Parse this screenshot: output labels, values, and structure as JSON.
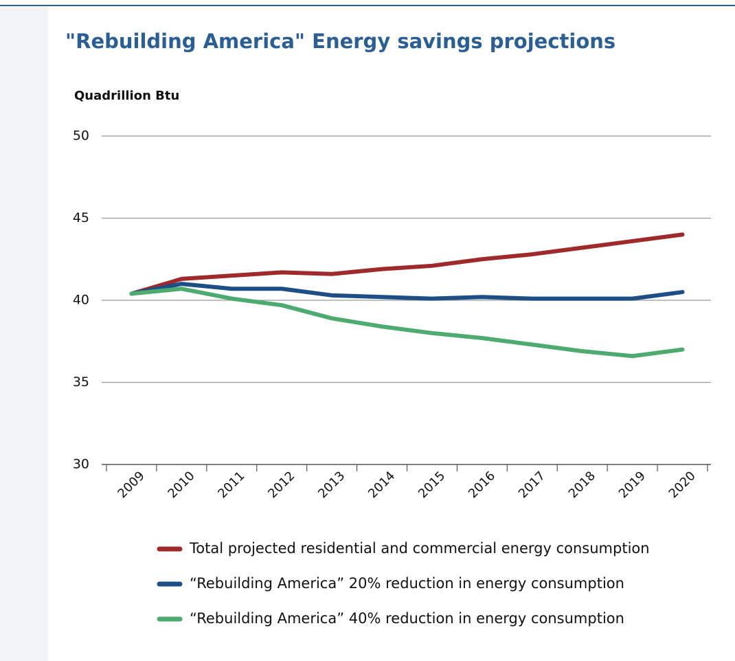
{
  "chart_data": {
    "type": "line",
    "title": "\"Rebuilding America\" Energy savings projections",
    "y_label": "Quadrillion Btu",
    "categories": [
      "2009",
      "2010",
      "2011",
      "2012",
      "2013",
      "2014",
      "2015",
      "2016",
      "2017",
      "2018",
      "2019",
      "2020"
    ],
    "series": [
      {
        "name": "Total projected residential and commercial energy consumption",
        "color": "#9e2a2b",
        "values": [
          40.4,
          41.3,
          41.5,
          41.7,
          41.6,
          41.9,
          42.1,
          42.5,
          42.8,
          43.2,
          43.6,
          44.0
        ]
      },
      {
        "name": "“Rebuilding America” 20% reduction in energy consumption",
        "color": "#1d4f86",
        "values": [
          40.4,
          41.0,
          40.7,
          40.7,
          40.3,
          40.2,
          40.1,
          40.2,
          40.1,
          40.1,
          40.1,
          40.5
        ]
      },
      {
        "name": "“Rebuilding America” 40% reduction in energy consumption",
        "color": "#4eab6f",
        "values": [
          40.4,
          40.7,
          40.1,
          39.7,
          38.9,
          38.4,
          38.0,
          37.7,
          37.3,
          36.9,
          36.6,
          37.0
        ]
      }
    ],
    "ylim": [
      30,
      50
    ],
    "yticks": [
      30,
      35,
      40,
      45,
      50
    ],
    "grid": true
  }
}
